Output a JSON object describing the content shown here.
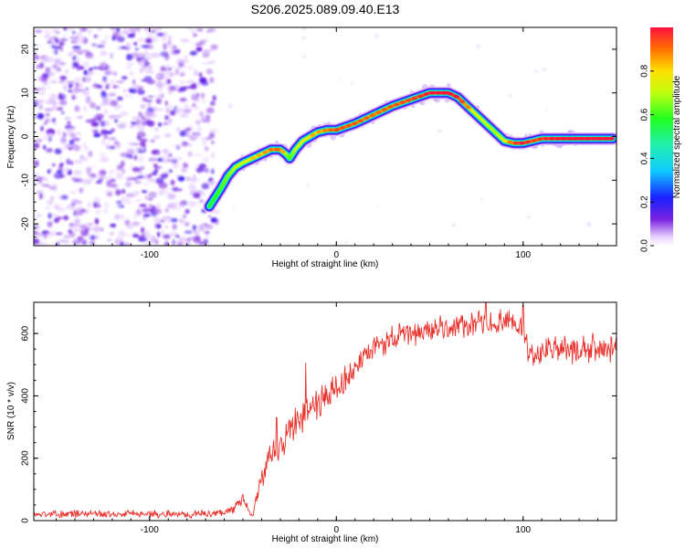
{
  "title": "S206.2025.089.09.40.E13",
  "colors": {
    "snr_line": "#e8322c",
    "axis": "#000000"
  },
  "chart_data": [
    {
      "type": "heatmap",
      "xlabel": "Height of straight line (km)",
      "ylabel": "Frequency (Hz)",
      "xlim": [
        -162,
        150
      ],
      "ylim": [
        -25,
        25
      ],
      "xticks": [
        -100,
        0,
        100
      ],
      "yticks": [
        -20,
        -10,
        0,
        10,
        20
      ],
      "colorbar": {
        "label": "Normalized spectral amplitude",
        "range": [
          0,
          1
        ],
        "ticks": [
          "0.0",
          "0.2",
          "0.4",
          "0.6",
          "0.8"
        ],
        "tick_values": [
          0,
          0.2,
          0.4,
          0.6,
          0.8
        ]
      },
      "trace": {
        "x": [
          -68,
          -62,
          -58,
          -54,
          -50,
          -45,
          -40,
          -35,
          -30,
          -27,
          -25,
          -22,
          -18,
          -14,
          -10,
          -5,
          0,
          10,
          20,
          30,
          40,
          50,
          60,
          65,
          70,
          75,
          80,
          85,
          90,
          95,
          100,
          105,
          110,
          120,
          130,
          140,
          148
        ],
        "y": [
          -16,
          -12,
          -9,
          -7,
          -6,
          -5,
          -4,
          -3,
          -3,
          -4,
          -5,
          -3,
          -1,
          0,
          1,
          1.5,
          1.5,
          3,
          5,
          7,
          8.5,
          10,
          10,
          9,
          7,
          5,
          3,
          1,
          -1,
          -1.5,
          -1.5,
          -1,
          -0.5,
          -0.5,
          -0.5,
          -0.5,
          -0.5
        ],
        "amplitude": [
          0.55,
          0.6,
          0.65,
          0.7,
          0.72,
          0.78,
          0.8,
          0.85,
          0.88,
          0.7,
          0.6,
          0.7,
          0.75,
          0.8,
          0.8,
          0.85,
          0.9,
          0.88,
          0.86,
          0.88,
          0.9,
          0.95,
          0.98,
          0.95,
          0.85,
          0.75,
          0.7,
          0.68,
          0.75,
          0.9,
          0.95,
          0.9,
          0.92,
          0.97,
          0.98,
          0.98,
          0.98
        ]
      },
      "noise_region_x": [
        -162,
        -65
      ]
    },
    {
      "type": "line",
      "xlabel": "Height of straight line (km)",
      "ylabel": "SNR (10 * v/v)",
      "xlim": [
        -162,
        150
      ],
      "ylim": [
        0,
        700
      ],
      "xticks": [
        -100,
        0,
        100
      ],
      "yticks": [
        0,
        200,
        400,
        600
      ],
      "series": [
        {
          "x": [
            -162,
            -140,
            -120,
            -100,
            -80,
            -65,
            -60,
            -55,
            -52,
            -50,
            -48,
            -45,
            -40,
            -35,
            -30,
            -25,
            -20,
            -18,
            -15,
            -10,
            -5,
            0,
            5,
            10,
            15,
            20,
            25,
            30,
            40,
            50,
            60,
            70,
            80,
            90,
            100,
            103,
            106,
            110,
            120,
            130,
            140,
            150
          ],
          "y": [
            20,
            22,
            21,
            22,
            20,
            22,
            28,
            40,
            60,
            70,
            40,
            10,
            140,
            200,
            240,
            290,
            320,
            350,
            360,
            380,
            400,
            420,
            450,
            490,
            520,
            550,
            570,
            585,
            600,
            610,
            620,
            625,
            630,
            635,
            620,
            550,
            520,
            540,
            550,
            545,
            550,
            555
          ],
          "noise": [
            10,
            12,
            12,
            12,
            12,
            12,
            10,
            15,
            20,
            20,
            15,
            10,
            40,
            50,
            60,
            60,
            60,
            60,
            55,
            55,
            50,
            50,
            45,
            45,
            40,
            40,
            40,
            40,
            40,
            40,
            40,
            40,
            40,
            40,
            40,
            45,
            45,
            45,
            45,
            45,
            45,
            45
          ],
          "spikes": [
            {
              "x": -16.5,
              "y": 505
            },
            {
              "x": -32,
              "y": 330
            },
            {
              "x": 80,
              "y": 700
            },
            {
              "x": 100,
              "y": 690
            }
          ]
        }
      ]
    }
  ]
}
